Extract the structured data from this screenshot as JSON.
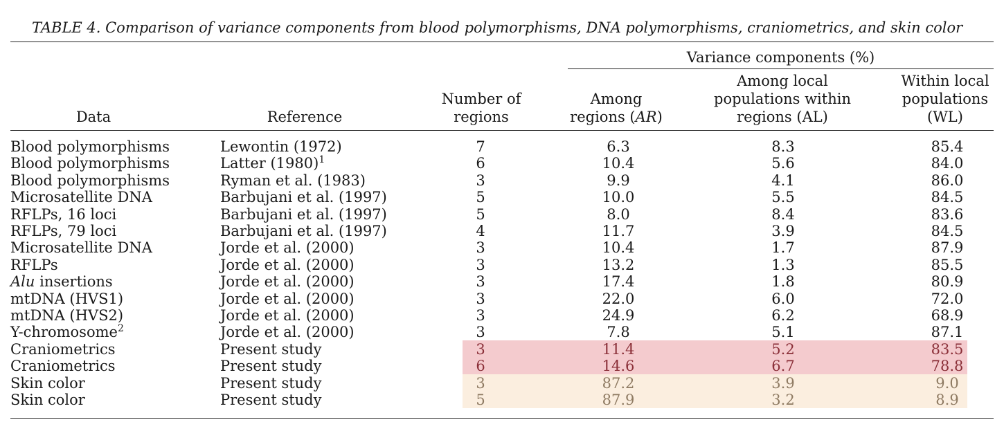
{
  "title": "TABLE 4.  Comparison of variance components from blood polymorphisms, DNA polymorphisms, craniometrics, and skin color",
  "headers": {
    "group": "Variance components (%)",
    "data": "Data",
    "reference": "Reference",
    "regions": [
      "Number of",
      "regions"
    ],
    "ar": [
      "Among",
      "regions (",
      "AR",
      ")"
    ],
    "al": [
      "Among local",
      "populations within",
      "regions (AL)"
    ],
    "wl": [
      "Within local",
      "populations",
      "(WL)"
    ]
  },
  "rows": [
    {
      "data": "Blood polymorphisms",
      "ref": "Lewontin (1972)",
      "n": "7",
      "ar": "6.3",
      "al": "8.3",
      "wl": "85.4"
    },
    {
      "data": "Blood polymorphisms",
      "ref": "Latter (1980)",
      "ref_sup": "1",
      "n": "6",
      "ar": "10.4",
      "al": "5.6",
      "wl": "84.0"
    },
    {
      "data": "Blood polymorphisms",
      "ref": "Ryman et al. (1983)",
      "n": "3",
      "ar": "9.9",
      "al": "4.1",
      "wl": "86.0"
    },
    {
      "data": "Microsatellite DNA",
      "ref": "Barbujani et al. (1997)",
      "n": "5",
      "ar": "10.0",
      "al": "5.5",
      "wl": "84.5"
    },
    {
      "data": "RFLPs, 16 loci",
      "ref": "Barbujani et al. (1997)",
      "n": "5",
      "ar": "8.0",
      "al": "8.4",
      "wl": "83.6"
    },
    {
      "data": "RFLPs, 79 loci",
      "ref": "Barbujani et al. (1997)",
      "n": "4",
      "ar": "11.7",
      "al": "3.9",
      "wl": "84.5"
    },
    {
      "data": "Microsatellite DNA",
      "ref": "Jorde et al. (2000)",
      "n": "3",
      "ar": "10.4",
      "al": "1.7",
      "wl": "87.9"
    },
    {
      "data": "RFLPs",
      "ref": "Jorde et al. (2000)",
      "n": "3",
      "ar": "13.2",
      "al": "1.3",
      "wl": "85.5"
    },
    {
      "data_italic": "Alu",
      "data": " insertions",
      "ref": "Jorde et al. (2000)",
      "n": "3",
      "ar": "17.4",
      "al": "1.8",
      "wl": "80.9"
    },
    {
      "data": "mtDNA (HVS1)",
      "ref": "Jorde et al. (2000)",
      "n": "3",
      "ar": "22.0",
      "al": "6.0",
      "wl": "72.0"
    },
    {
      "data": "mtDNA (HVS2)",
      "ref": "Jorde et al. (2000)",
      "n": "3",
      "ar": "24.9",
      "al": "6.2",
      "wl": "68.9"
    },
    {
      "data": "Y-chromosome",
      "data_sup": "2",
      "ref": "Jorde et al. (2000)",
      "n": "3",
      "ar": "7.8",
      "al": "5.1",
      "wl": "87.1"
    },
    {
      "data": "Craniometrics",
      "ref": "Present study",
      "n": "3",
      "ar": "11.4",
      "al": "5.2",
      "wl": "83.5",
      "highlight": "red"
    },
    {
      "data": "Craniometrics",
      "ref": "Present study",
      "n": "6",
      "ar": "14.6",
      "al": "6.7",
      "wl": "78.8",
      "highlight": "red"
    },
    {
      "data": "Skin color",
      "ref": "Present study",
      "n": "3",
      "ar": "87.2",
      "al": "3.9",
      "wl": "9.0",
      "highlight": "cream"
    },
    {
      "data": "Skin color",
      "ref": "Present study",
      "n": "5",
      "ar": "87.9",
      "al": "3.2",
      "wl": "8.9",
      "highlight": "cream"
    }
  ],
  "colors": {
    "red_band": "#f4cbce",
    "cream_band": "#fbeedf"
  }
}
